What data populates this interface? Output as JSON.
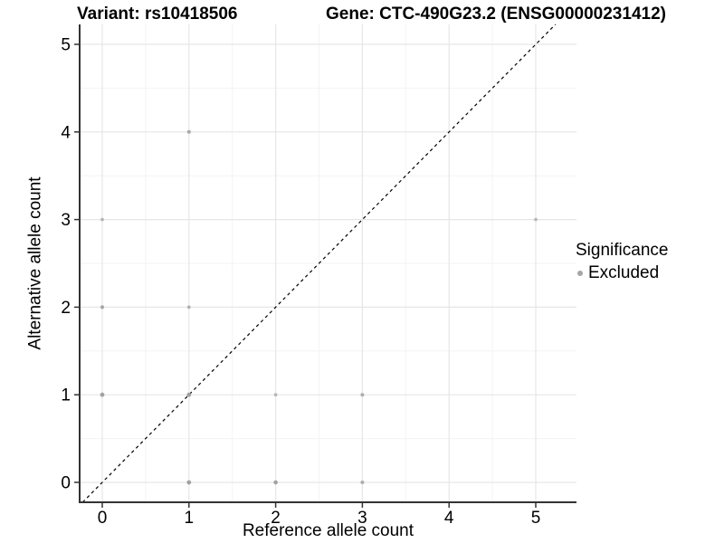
{
  "figure": {
    "background": "#ffffff"
  },
  "chart_data": {
    "type": "scatter",
    "titles": {
      "left": "Variant: rs10418506",
      "right": "Gene: CTC-490G23.2 (ENSG00000231412)"
    },
    "xlabel": "Reference allele count",
    "ylabel": "Alternative allele count",
    "x_ticks": [
      0,
      1,
      2,
      3,
      4,
      5
    ],
    "y_ticks": [
      0,
      1,
      2,
      3,
      4,
      5
    ],
    "xlim": [
      -0.26,
      5.47
    ],
    "ylim": [
      -0.23,
      5.45
    ],
    "grid": {
      "major": true,
      "minor": true
    },
    "identity_line": {
      "style": "dashed",
      "color": "#000000"
    },
    "legend": {
      "title": "Significance",
      "position": "right",
      "entries": [
        {
          "label": "Excluded",
          "color": "#a6a6a6"
        }
      ]
    },
    "points": [
      {
        "x": 0,
        "y": 1,
        "r": 2.4,
        "color": "#a2a2a2"
      },
      {
        "x": 0,
        "y": 2,
        "r": 2.1,
        "color": "#a8a8a8"
      },
      {
        "x": 0,
        "y": 3,
        "r": 1.8,
        "color": "#b2b2b2"
      },
      {
        "x": 1,
        "y": 0,
        "r": 2.4,
        "color": "#a2a2a2"
      },
      {
        "x": 1,
        "y": 1,
        "r": 2.4,
        "color": "#a0a0a0"
      },
      {
        "x": 1,
        "y": 2,
        "r": 1.9,
        "color": "#b0b0b0"
      },
      {
        "x": 1,
        "y": 4,
        "r": 2.0,
        "color": "#a9a9a9"
      },
      {
        "x": 2,
        "y": 0,
        "r": 2.3,
        "color": "#a2a2a2"
      },
      {
        "x": 2,
        "y": 1,
        "r": 1.8,
        "color": "#b5b5b5"
      },
      {
        "x": 3,
        "y": 0,
        "r": 2.0,
        "color": "#adadad"
      },
      {
        "x": 3,
        "y": 1,
        "r": 2.0,
        "color": "#aeaeae"
      },
      {
        "x": 5,
        "y": 3,
        "r": 1.8,
        "color": "#b5b5b5"
      }
    ],
    "colors": {
      "grid_major": "#e6e6e6",
      "grid_minor": "#f3f3f3",
      "axis": "#333333",
      "text": "#000000"
    }
  }
}
